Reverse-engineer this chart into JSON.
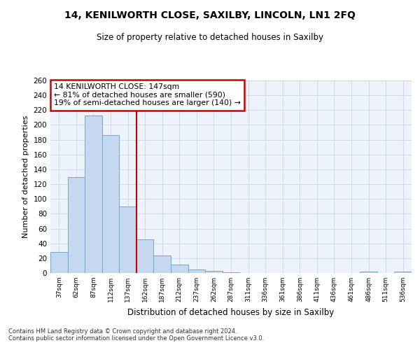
{
  "title": "14, KENILWORTH CLOSE, SAXILBY, LINCOLN, LN1 2FQ",
  "subtitle": "Size of property relative to detached houses in Saxilby",
  "xlabel": "Distribution of detached houses by size in Saxilby",
  "ylabel": "Number of detached properties",
  "bar_color": "#c5d8f0",
  "bar_edge_color": "#6aaad4",
  "categories": [
    "37sqm",
    "62sqm",
    "87sqm",
    "112sqm",
    "137sqm",
    "162sqm",
    "187sqm",
    "212sqm",
    "237sqm",
    "262sqm",
    "287sqm",
    "311sqm",
    "336sqm",
    "361sqm",
    "386sqm",
    "411sqm",
    "436sqm",
    "461sqm",
    "486sqm",
    "511sqm",
    "536sqm"
  ],
  "values": [
    28,
    130,
    213,
    186,
    90,
    45,
    24,
    11,
    5,
    3,
    1,
    0,
    0,
    0,
    0,
    0,
    0,
    0,
    2,
    0,
    2
  ],
  "vline_x": 4.5,
  "annotation_title": "14 KENILWORTH CLOSE: 147sqm",
  "annotation_line1": "← 81% of detached houses are smaller (590)",
  "annotation_line2": "19% of semi-detached houses are larger (140) →",
  "ylim": [
    0,
    260
  ],
  "yticks": [
    0,
    20,
    40,
    60,
    80,
    100,
    120,
    140,
    160,
    180,
    200,
    220,
    240,
    260
  ],
  "vline_color": "#cc0000",
  "annotation_box_color": "#cc0000",
  "background_color": "#eef2fa",
  "grid_color": "#c8d4e8",
  "footnote1": "Contains HM Land Registry data © Crown copyright and database right 2024.",
  "footnote2": "Contains public sector information licensed under the Open Government Licence v3.0."
}
